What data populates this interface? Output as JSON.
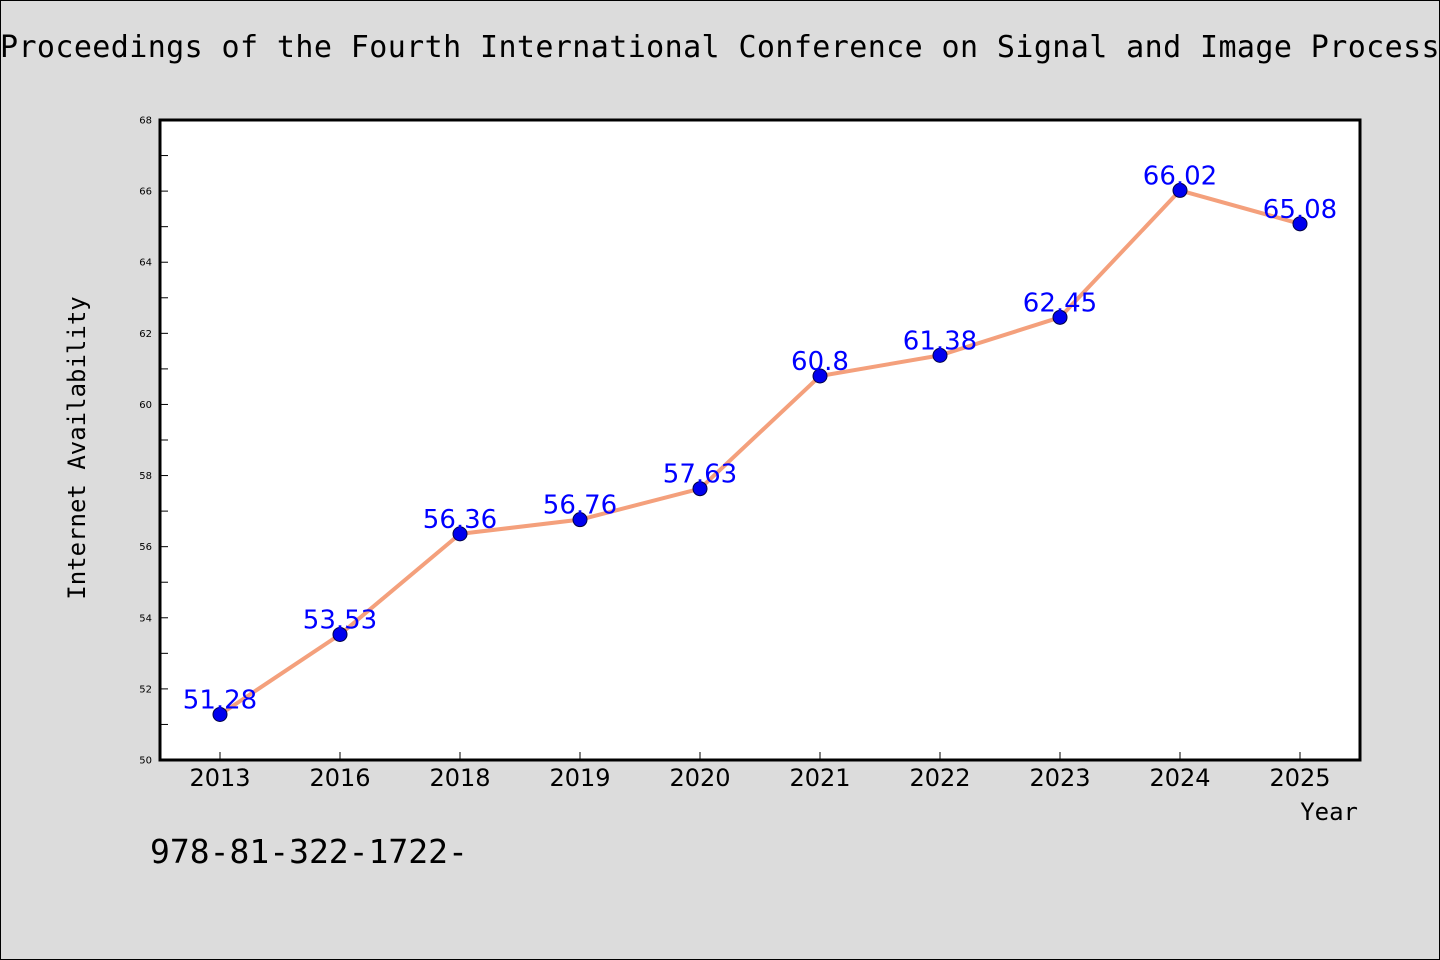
{
  "page": {
    "title": "Proceedings of the Fourth International Conference on Signal and Image Processin",
    "footer": "978-81-322-1722-"
  },
  "colors": {
    "background": "#dcdcdc",
    "plot_background": "#ffffff",
    "line": "#f4a07c",
    "marker": "#0000ee",
    "data_label": "#0000ff",
    "axis": "#000000"
  },
  "chart_data": {
    "type": "line",
    "title": "",
    "xlabel": "Year",
    "ylabel": "Internet Availability",
    "categories": [
      "2013",
      "2016",
      "2018",
      "2019",
      "2020",
      "2021",
      "2022",
      "2023",
      "2024",
      "2025"
    ],
    "series": [
      {
        "values": [
          51.28,
          53.53,
          56.36,
          56.76,
          57.63,
          60.8,
          61.38,
          62.45,
          66.02,
          65.08
        ],
        "data_labels": [
          "51.28",
          "53.53",
          "56.36",
          "56.76",
          "57.63",
          "60.8",
          "61.38",
          "62.45",
          "66.02",
          "65.08"
        ]
      }
    ],
    "ylim": [
      50,
      68
    ],
    "yticks": [
      "50",
      "52",
      "54",
      "56",
      "58",
      "60",
      "62",
      "64",
      "66",
      "68"
    ],
    "grid": false,
    "legend": "none"
  }
}
